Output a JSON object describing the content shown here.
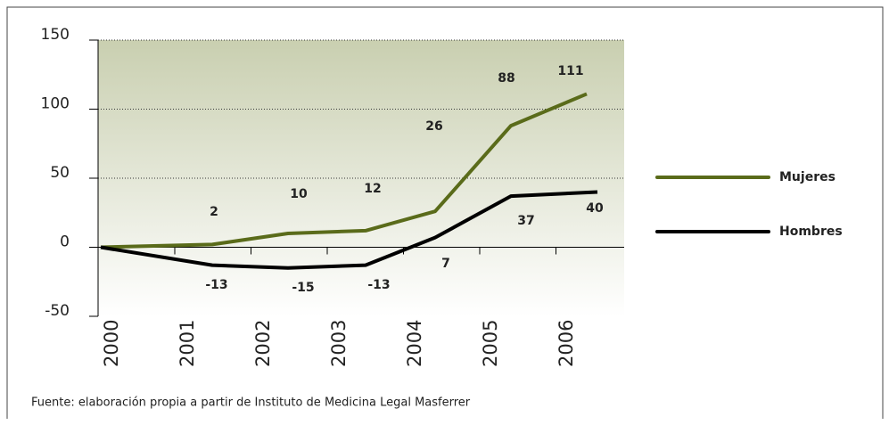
{
  "chart_data": {
    "type": "line",
    "categories": [
      "2000",
      "2001",
      "2002",
      "2003",
      "2004",
      "2005",
      "2006"
    ],
    "series": [
      {
        "name": "Mujeres",
        "color": "#5a6b1a",
        "values": [
          0,
          2,
          10,
          12,
          26,
          88,
          111
        ]
      },
      {
        "name": "Hombres",
        "color": "#000000",
        "values": [
          0,
          -13,
          -15,
          -13,
          7,
          37,
          40
        ]
      }
    ],
    "ylim": [
      -50,
      150
    ],
    "yticks": [
      -50,
      0,
      50,
      100,
      150
    ],
    "grid": true,
    "legend": "right",
    "source": "Fuente: elaboración propia a partir de Instituto de Medicina Legal Masferrer"
  }
}
